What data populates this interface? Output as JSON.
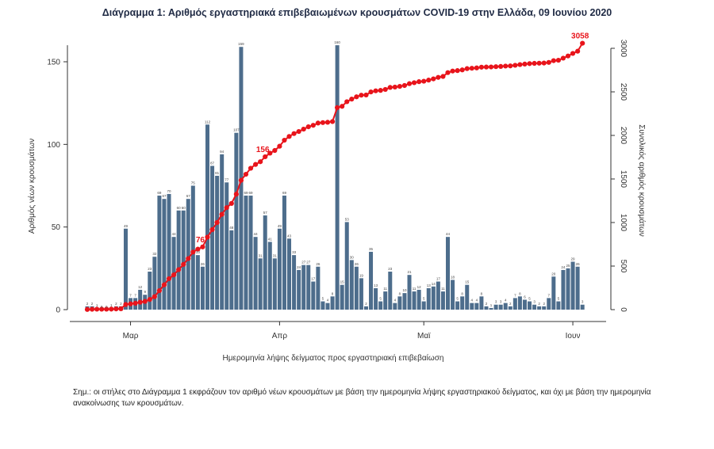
{
  "title": "Διάγραμμα 1: Αριθμός εργαστηριακά επιβεβαιωμένων κρουσμάτων COVID-19 στην Ελλάδα, 09 Ιουνίου 2020",
  "note": "Σημ.: οι στήλες στο Διάγραμμα 1 εκφράζουν τον αριθμό νέων κρουσμάτων με βάση την ημερομηνία λήψης εργαστηριακού δείγματος, και όχι με βάση την ημερομηνία ανακοίνωσης των κρουσμάτων.",
  "colors": {
    "bar": "#4d6d8c",
    "line": "#e8141b"
  },
  "chart_data": {
    "type": "bar+line",
    "xlabel": "Ημερομηνία λήψης δείγματος προς εργαστηριακή επιβεβαίωση",
    "ylabel_left": "Αριθμός νέων κρουσμάτων",
    "ylabel_right": "Συνολικός αριθμός κρουσμάτων",
    "ylim_left": [
      0,
      160
    ],
    "yticks_left": [
      0,
      50,
      100,
      150
    ],
    "ylim_right": [
      0,
      3058
    ],
    "yticks_right": [
      0,
      500,
      1000,
      1500,
      2000,
      2500,
      3000
    ],
    "x_start": "2020-02-21",
    "xticks": [
      {
        "label": "Μαρ",
        "day": 9
      },
      {
        "label": "Απρ",
        "day": 40
      },
      {
        "label": "Μαϊ",
        "day": 70
      },
      {
        "label": "Ιουν",
        "day": 101
      }
    ],
    "bars": {
      "name": "Νέα κρούσματα",
      "values": [
        2,
        2,
        1,
        0,
        0,
        1,
        2,
        2,
        49,
        7,
        7,
        12,
        9,
        23,
        32,
        69,
        67,
        70,
        44,
        60,
        60,
        67,
        75,
        33,
        26,
        112,
        87,
        81,
        94,
        77,
        48,
        107,
        159,
        69,
        69,
        44,
        31,
        57,
        41,
        31,
        49,
        69,
        43,
        33,
        24,
        27,
        27,
        17,
        26,
        5,
        4,
        8,
        160,
        15,
        53,
        30,
        26,
        19,
        2,
        35,
        13,
        5,
        11,
        23,
        4,
        8,
        10,
        21,
        11,
        12,
        5,
        13,
        14,
        17,
        11,
        44,
        18,
        5,
        8,
        15,
        4,
        4,
        8,
        2,
        1,
        3,
        3,
        4,
        2,
        7,
        8,
        6,
        5,
        3,
        2,
        2,
        7,
        20,
        5,
        24,
        25,
        29,
        26,
        3
      ],
      "labels": [
        "2",
        "2",
        "1",
        "0",
        "0",
        "1",
        "2",
        "2",
        "49",
        "7",
        "7",
        "12",
        "9",
        "23",
        "32",
        "69",
        "67",
        "70",
        "44",
        "60",
        "60",
        "67",
        "75",
        "33",
        "26",
        "112",
        "87",
        "81",
        "94",
        "77",
        "48",
        "107",
        "159",
        "69",
        "69",
        "44",
        "31",
        "57",
        "41",
        "31",
        "49",
        "69",
        "43",
        "33",
        "24",
        "27",
        "27",
        "17",
        "26",
        "5",
        "4",
        "8",
        "160",
        "15",
        "53",
        "30",
        "26",
        "19",
        "2",
        "35",
        "13",
        "5",
        "11",
        "23",
        "4",
        "8",
        "10",
        "21",
        "11",
        "12",
        "5",
        "13",
        "14",
        "17",
        "11",
        "44",
        "18",
        "5",
        "8",
        "15",
        "4",
        "4",
        "8",
        "2",
        "1",
        "3",
        "3",
        "4",
        "2",
        "7",
        "8",
        "6",
        "5",
        "3",
        "2",
        "2",
        "7",
        "20",
        "5",
        "24",
        "25",
        "29",
        "26",
        "3"
      ]
    },
    "line": {
      "name": "Συνολικά κρούσματα",
      "values": [
        2,
        4,
        5,
        5,
        5,
        6,
        8,
        10,
        59,
        66,
        73,
        85,
        94,
        117,
        149,
        218,
        285,
        355,
        399,
        459,
        519,
        586,
        661,
        694,
        720,
        832,
        919,
        1000,
        1094,
        1171,
        1219,
        1326,
        1485,
        1554,
        1623,
        1667,
        1698,
        1755,
        1796,
        1827,
        1876,
        1945,
        1988,
        2021,
        2045,
        2072,
        2099,
        2116,
        2142,
        2147,
        2151,
        2159,
        2319,
        2334,
        2387,
        2417,
        2443,
        2462,
        2464,
        2499,
        2512,
        2517,
        2528,
        2551,
        2555,
        2563,
        2573,
        2594,
        2605,
        2617,
        2622,
        2635,
        2649,
        2666,
        2677,
        2721,
        2739,
        2744,
        2752,
        2767,
        2771,
        2775,
        2783,
        2785,
        2786,
        2789,
        2792,
        2796,
        2798,
        2805,
        2813,
        2819,
        2824,
        2827,
        2829,
        2831,
        2838,
        2858,
        2863,
        2887,
        2912,
        2941,
        2967,
        3058
      ],
      "labels": [
        {
          "index": 24,
          "text": "76"
        },
        {
          "index": 37,
          "text": "156"
        },
        {
          "index": 103,
          "text": "3058"
        }
      ]
    }
  }
}
